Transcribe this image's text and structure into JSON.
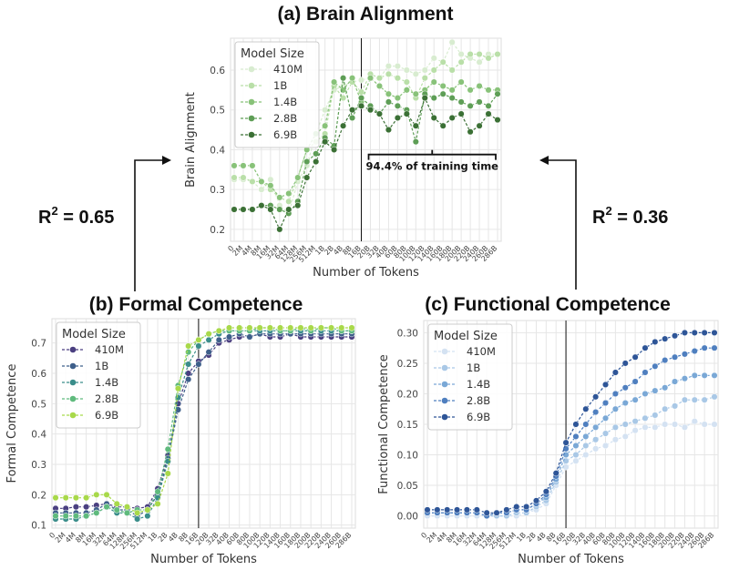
{
  "figure": {
    "r2_left": {
      "base": "R",
      "sup": "2",
      "rest": " = 0.65"
    },
    "r2_right": {
      "base": "R",
      "sup": "2",
      "rest": " = 0.36"
    },
    "annotation": "94.4% of training time"
  },
  "chart_data": [
    {
      "id": "brain",
      "type": "line",
      "title": "(a) Brain Alignment",
      "xlabel": "Number of Tokens",
      "ylabel": "Brain Alignment",
      "ylim": [
        0.17,
        0.68
      ],
      "yticks": [
        0.2,
        0.3,
        0.4,
        0.5,
        0.6
      ],
      "categories": [
        "0",
        "2M",
        "4M",
        "8M",
        "16M",
        "32M",
        "64M",
        "128M",
        "256M",
        "512M",
        "1B",
        "2B",
        "4B",
        "8B",
        "16B",
        "20B",
        "32B",
        "40B",
        "60B",
        "80B",
        "100B",
        "120B",
        "140B",
        "160B",
        "180B",
        "200B",
        "220B",
        "240B",
        "260B",
        "286B"
      ],
      "vline_at": "16B",
      "legend_title": "Model Size",
      "legend_position": "top-left",
      "annotation_span": [
        "16B",
        "286B"
      ],
      "series": [
        {
          "name": "410M",
          "color": "#d8ecd0",
          "values": [
            0.325,
            0.325,
            0.32,
            0.3,
            0.325,
            0.26,
            0.24,
            0.32,
            0.36,
            0.44,
            0.5,
            0.55,
            0.56,
            0.57,
            0.575,
            0.58,
            0.58,
            0.61,
            0.61,
            0.6,
            0.59,
            0.6,
            0.63,
            0.62,
            0.67,
            0.64,
            0.63,
            0.62,
            0.64,
            0.64
          ]
        },
        {
          "name": "1B",
          "color": "#b9dfa8",
          "values": [
            0.33,
            0.33,
            0.32,
            0.32,
            0.3,
            0.28,
            0.27,
            0.33,
            0.4,
            0.42,
            0.44,
            0.56,
            0.53,
            0.57,
            0.545,
            0.59,
            0.58,
            0.59,
            0.58,
            0.57,
            0.53,
            0.58,
            0.6,
            0.62,
            0.6,
            0.62,
            0.64,
            0.64,
            0.63,
            0.64
          ]
        },
        {
          "name": "1.4B",
          "color": "#88c279",
          "values": [
            0.36,
            0.36,
            0.36,
            0.32,
            0.31,
            0.28,
            0.29,
            0.33,
            0.4,
            0.44,
            0.46,
            0.57,
            0.55,
            0.58,
            0.52,
            0.58,
            0.56,
            0.54,
            0.53,
            0.55,
            0.54,
            0.55,
            0.57,
            0.56,
            0.55,
            0.57,
            0.55,
            0.56,
            0.55,
            0.55
          ]
        },
        {
          "name": "2.8B",
          "color": "#5e9e56",
          "values": [
            0.25,
            0.25,
            0.25,
            0.26,
            0.26,
            0.25,
            0.24,
            0.27,
            0.37,
            0.39,
            0.43,
            0.41,
            0.58,
            0.48,
            0.53,
            0.51,
            0.49,
            0.52,
            0.51,
            0.5,
            0.42,
            0.54,
            0.53,
            0.54,
            0.53,
            0.52,
            0.51,
            0.52,
            0.51,
            0.54
          ]
        },
        {
          "name": "6.9B",
          "color": "#3b7035",
          "values": [
            0.25,
            0.25,
            0.25,
            0.26,
            0.25,
            0.2,
            0.25,
            0.26,
            0.33,
            0.37,
            0.42,
            0.4,
            0.46,
            0.5,
            0.51,
            0.5,
            0.49,
            0.45,
            0.48,
            0.49,
            0.46,
            0.53,
            0.48,
            0.46,
            0.48,
            0.49,
            0.445,
            0.46,
            0.49,
            0.475
          ]
        }
      ]
    },
    {
      "id": "formal",
      "type": "line",
      "title": "(b) Formal Competence",
      "xlabel": "Number of Tokens",
      "ylabel": "Formal Competence",
      "ylim": [
        0.09,
        0.78
      ],
      "yticks": [
        0.1,
        0.2,
        0.3,
        0.4,
        0.5,
        0.6,
        0.7
      ],
      "categories": [
        "0",
        "2M",
        "4M",
        "8M",
        "16M",
        "32M",
        "64M",
        "128M",
        "256M",
        "512M",
        "1B",
        "2B",
        "4B",
        "8B",
        "16B",
        "20B",
        "32B",
        "40B",
        "60B",
        "80B",
        "100B",
        "120B",
        "140B",
        "160B",
        "180B",
        "200B",
        "220B",
        "240B",
        "260B",
        "286B"
      ],
      "vline_at": "16B",
      "legend_title": "Model Size",
      "legend_position": "top-left",
      "series": [
        {
          "name": "410M",
          "color": "#4a3f80",
          "values": [
            0.155,
            0.155,
            0.16,
            0.16,
            0.165,
            0.17,
            0.16,
            0.16,
            0.155,
            0.16,
            0.22,
            0.33,
            0.5,
            0.6,
            0.64,
            0.66,
            0.7,
            0.71,
            0.72,
            0.72,
            0.73,
            0.72,
            0.72,
            0.73,
            0.72,
            0.72,
            0.72,
            0.72,
            0.72,
            0.72
          ]
        },
        {
          "name": "1B",
          "color": "#3e5f8a",
          "values": [
            0.14,
            0.14,
            0.14,
            0.14,
            0.15,
            0.17,
            0.15,
            0.15,
            0.13,
            0.15,
            0.2,
            0.32,
            0.48,
            0.58,
            0.63,
            0.67,
            0.71,
            0.72,
            0.73,
            0.72,
            0.73,
            0.73,
            0.73,
            0.73,
            0.73,
            0.73,
            0.73,
            0.73,
            0.73,
            0.73
          ]
        },
        {
          "name": "1.4B",
          "color": "#3a8d8a",
          "values": [
            0.12,
            0.12,
            0.12,
            0.13,
            0.14,
            0.16,
            0.14,
            0.14,
            0.12,
            0.13,
            0.19,
            0.31,
            0.52,
            0.63,
            0.69,
            0.71,
            0.73,
            0.74,
            0.74,
            0.74,
            0.74,
            0.74,
            0.74,
            0.74,
            0.74,
            0.74,
            0.74,
            0.74,
            0.74,
            0.74
          ]
        },
        {
          "name": "2.8B",
          "color": "#5fba7d",
          "values": [
            0.13,
            0.13,
            0.13,
            0.13,
            0.14,
            0.16,
            0.15,
            0.14,
            0.15,
            0.15,
            0.21,
            0.35,
            0.56,
            0.67,
            0.71,
            0.73,
            0.74,
            0.74,
            0.74,
            0.74,
            0.75,
            0.75,
            0.74,
            0.74,
            0.75,
            0.74,
            0.75,
            0.75,
            0.74,
            0.74
          ]
        },
        {
          "name": "6.9B",
          "color": "#a8d94a",
          "values": [
            0.19,
            0.19,
            0.19,
            0.19,
            0.2,
            0.2,
            0.17,
            0.16,
            0.14,
            0.15,
            0.17,
            0.27,
            0.55,
            0.69,
            0.71,
            0.73,
            0.74,
            0.75,
            0.75,
            0.75,
            0.75,
            0.75,
            0.75,
            0.75,
            0.75,
            0.75,
            0.75,
            0.75,
            0.75,
            0.75
          ]
        }
      ]
    },
    {
      "id": "functional",
      "type": "line",
      "title": "(c) Functional Competence",
      "xlabel": "Number of Tokens",
      "ylabel": "Functional Competence",
      "ylim": [
        -0.02,
        0.32
      ],
      "yticks": [
        0.0,
        0.05,
        0.1,
        0.15,
        0.2,
        0.25,
        0.3
      ],
      "categories": [
        "0",
        "2M",
        "4M",
        "8M",
        "16M",
        "32M",
        "64M",
        "128M",
        "256M",
        "512M",
        "1B",
        "2B",
        "4B",
        "8B",
        "16B",
        "20B",
        "32B",
        "40B",
        "60B",
        "80B",
        "100B",
        "120B",
        "140B",
        "160B",
        "180B",
        "200B",
        "220B",
        "240B",
        "260B",
        "286B"
      ],
      "vline_at": "16B",
      "legend_title": "Model Size",
      "legend_position": "top-left",
      "series": [
        {
          "name": "410M",
          "color": "#d4e2f2",
          "values": [
            0.0,
            0.0,
            0.0,
            0.0,
            0.0,
            0.0,
            0.0,
            0.0,
            0.0,
            0.0,
            0.005,
            0.01,
            0.02,
            0.05,
            0.08,
            0.09,
            0.1,
            0.11,
            0.115,
            0.125,
            0.13,
            0.14,
            0.145,
            0.145,
            0.15,
            0.15,
            0.145,
            0.155,
            0.15,
            0.15
          ]
        },
        {
          "name": "1B",
          "color": "#a9c8e6",
          "values": [
            0.005,
            0.005,
            0.005,
            0.005,
            0.005,
            0.005,
            0.0,
            0.0,
            0.0,
            0.005,
            0.005,
            0.015,
            0.025,
            0.055,
            0.09,
            0.1,
            0.115,
            0.125,
            0.135,
            0.145,
            0.15,
            0.155,
            0.16,
            0.165,
            0.175,
            0.18,
            0.19,
            0.19,
            0.19,
            0.195
          ]
        },
        {
          "name": "1.4B",
          "color": "#7aa8d6",
          "values": [
            0.005,
            0.005,
            0.005,
            0.005,
            0.005,
            0.005,
            0.0,
            0.005,
            0.005,
            0.01,
            0.01,
            0.02,
            0.03,
            0.06,
            0.1,
            0.115,
            0.13,
            0.145,
            0.16,
            0.175,
            0.185,
            0.19,
            0.2,
            0.205,
            0.21,
            0.22,
            0.225,
            0.23,
            0.23,
            0.23
          ]
        },
        {
          "name": "2.8B",
          "color": "#4f7fbf",
          "values": [
            0.005,
            0.005,
            0.005,
            0.005,
            0.005,
            0.005,
            0.0,
            0.005,
            0.005,
            0.01,
            0.01,
            0.02,
            0.035,
            0.065,
            0.11,
            0.13,
            0.15,
            0.17,
            0.185,
            0.2,
            0.21,
            0.22,
            0.235,
            0.245,
            0.255,
            0.26,
            0.265,
            0.27,
            0.275,
            0.275
          ]
        },
        {
          "name": "6.9B",
          "color": "#2e5597",
          "values": [
            0.01,
            0.01,
            0.01,
            0.01,
            0.01,
            0.01,
            0.005,
            0.005,
            0.01,
            0.015,
            0.015,
            0.025,
            0.04,
            0.07,
            0.12,
            0.15,
            0.175,
            0.195,
            0.215,
            0.235,
            0.25,
            0.26,
            0.275,
            0.285,
            0.29,
            0.295,
            0.3,
            0.3,
            0.3,
            0.3
          ]
        }
      ]
    }
  ]
}
